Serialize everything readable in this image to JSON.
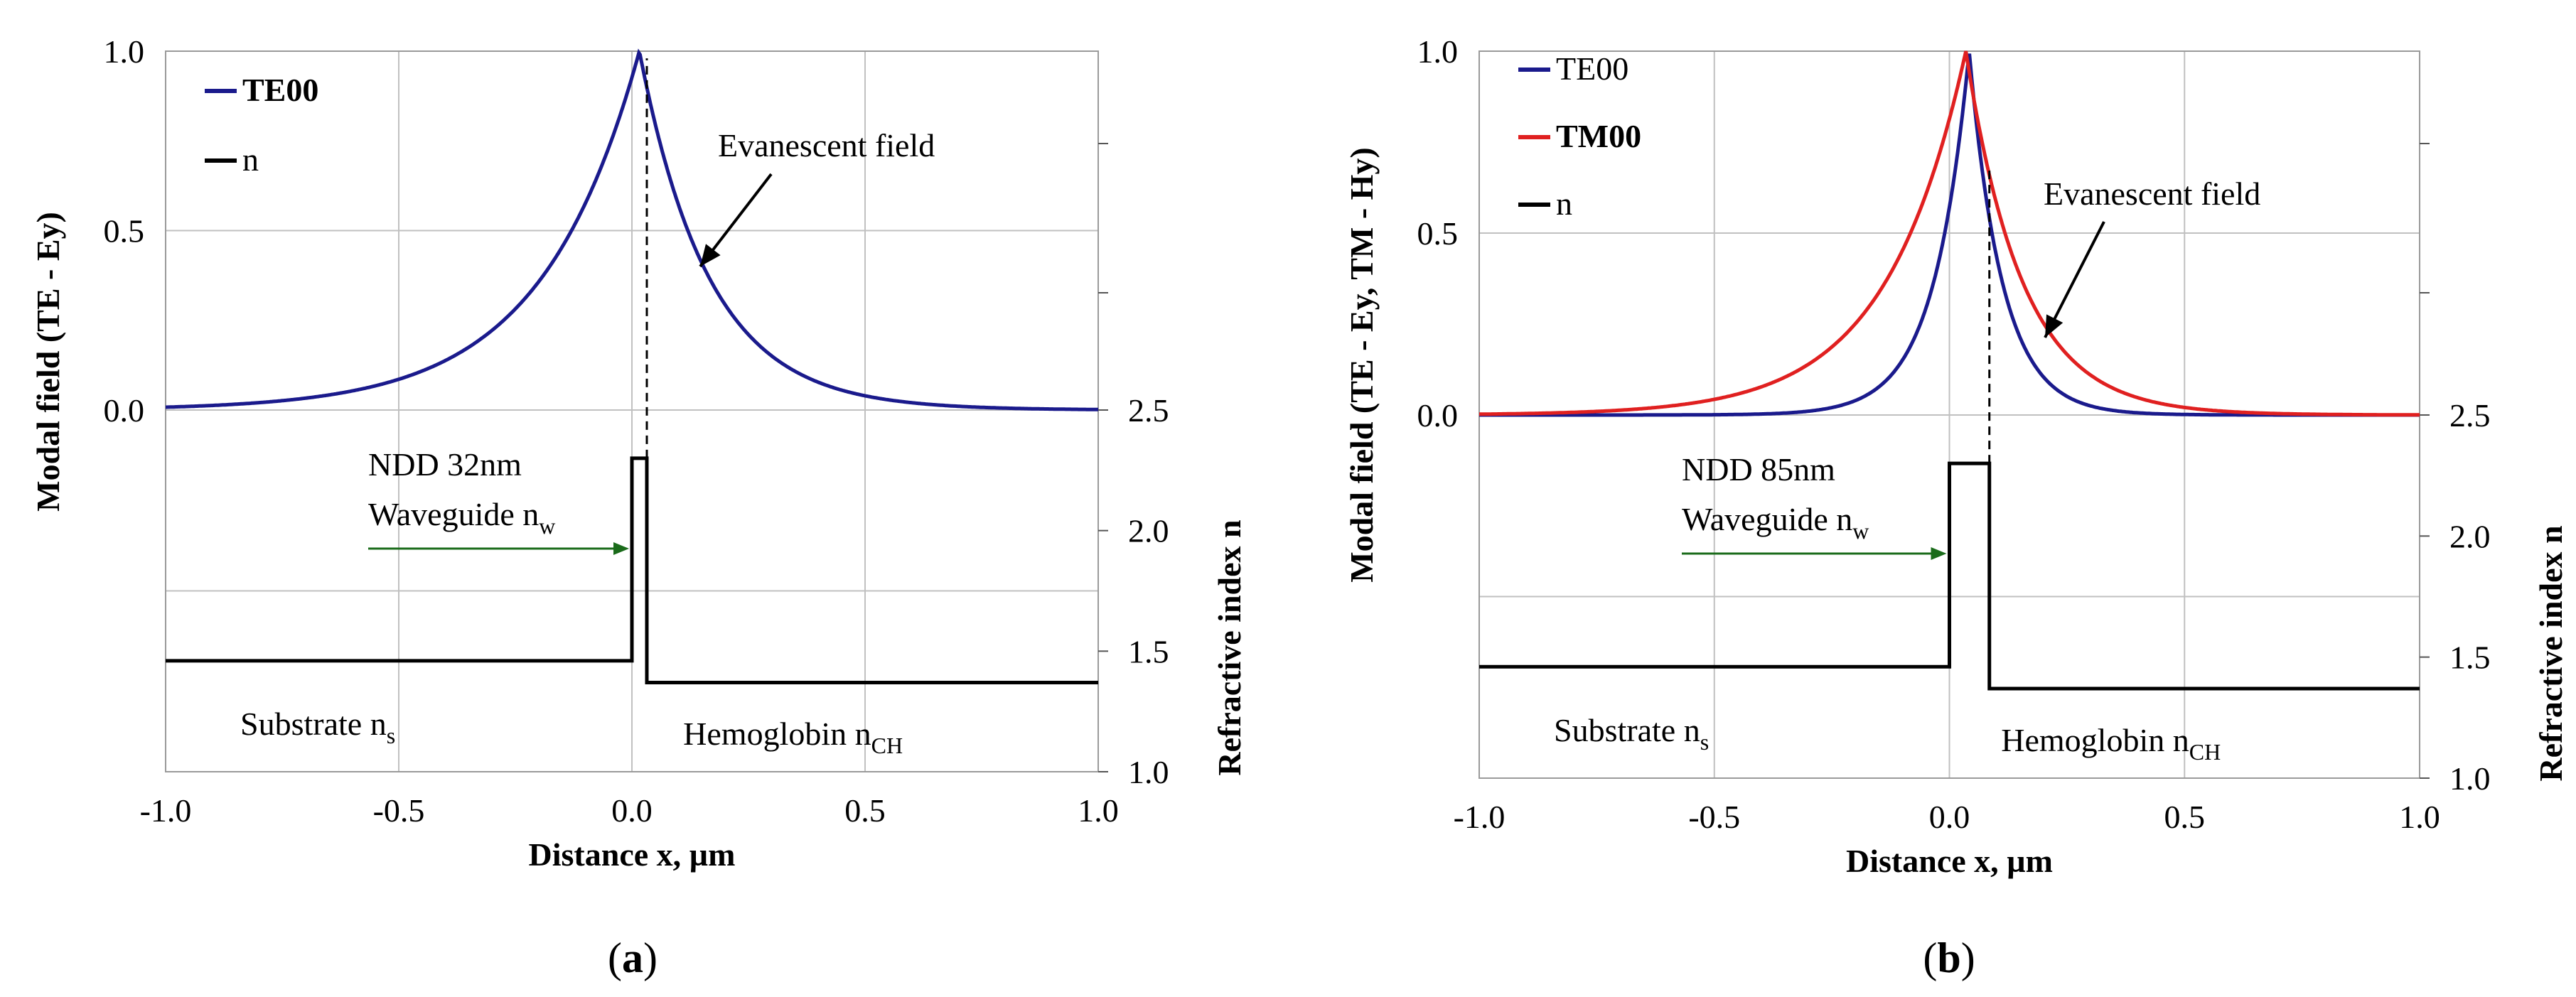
{
  "colors": {
    "te00": "#1a1a8c",
    "tm00": "#e02020",
    "index": "#000000",
    "ndd": "#1a6b1a",
    "hemoglobin": "#5a3a1a",
    "grid": "#c0c0c0"
  },
  "chart_data": [
    {
      "type": "line",
      "panel_label": "a",
      "xlabel": "Distance x, µm",
      "ylabel_left": "Modal field (TE - Ey)",
      "ylabel_right": "Refractive index n",
      "xlim": [
        -1.0,
        1.0
      ],
      "ylim_left": [
        0.0,
        1.0
      ],
      "ylim_right": [
        1.0,
        2.5
      ],
      "x_ticks": [
        "-1.0",
        "-0.5",
        "0.0",
        "0.5",
        "1.0"
      ],
      "y_ticks_left": [
        "0.0",
        "0.5",
        "1.0"
      ],
      "y_ticks_right": [
        "1.0",
        "1.5",
        "2.0",
        "2.5"
      ],
      "grid": true,
      "legend": {
        "position": "top-left",
        "entries": [
          "TE00",
          "n"
        ]
      },
      "annotations": {
        "evanescent": "Evanescent field",
        "ndd": "NDD 32nm",
        "waveguide": "Waveguide n",
        "waveguide_sub": "w",
        "substrate": "Substrate n",
        "substrate_sub": "s",
        "hemoglobin": "Hemoglobin n",
        "hemoglobin_sub": "CH"
      },
      "series": [
        {
          "name": "TE00",
          "kind": "field",
          "peak_x": 0.016,
          "decay_left": 0.21,
          "decay_right": 0.15
        },
        {
          "name": "n",
          "kind": "index",
          "steps": [
            {
              "x": [
                -1.0,
                0.0
              ],
              "n": 1.46
            },
            {
              "x": [
                0.0,
                0.032
              ],
              "n": 2.3
            },
            {
              "x": [
                0.032,
                1.0
              ],
              "n": 1.37
            }
          ]
        }
      ]
    },
    {
      "type": "line",
      "panel_label": "b",
      "xlabel": "Distance x, µm",
      "ylabel_left": "Modal field (TE - Ey, TM - Hy)",
      "ylabel_right": "Refractive index n",
      "xlim": [
        -1.0,
        1.0
      ],
      "ylim_left": [
        0.0,
        1.0
      ],
      "ylim_right": [
        1.0,
        2.5
      ],
      "x_ticks": [
        "-1.0",
        "-0.5",
        "0.0",
        "0.5",
        "1.0"
      ],
      "y_ticks_left": [
        "0.0",
        "0.5",
        "1.0"
      ],
      "y_ticks_right": [
        "1.0",
        "1.5",
        "2.0",
        "2.5"
      ],
      "grid": true,
      "legend": {
        "position": "top-left",
        "entries": [
          "TE00",
          "TM00",
          "n"
        ]
      },
      "annotations": {
        "evanescent": "Evanescent field",
        "ndd": "NDD 85nm",
        "waveguide": "Waveguide n",
        "waveguide_sub": "w",
        "substrate": "Substrate n",
        "substrate_sub": "s",
        "hemoglobin": "Hemoglobin n",
        "hemoglobin_sub": "CH"
      },
      "series": [
        {
          "name": "TE00",
          "kind": "field",
          "peak_x": 0.042,
          "decay_left": 0.075,
          "decay_right": 0.07
        },
        {
          "name": "TM00",
          "kind": "field",
          "peak_x": 0.035,
          "decay_left": 0.17,
          "decay_right": 0.12
        },
        {
          "name": "n",
          "kind": "index",
          "steps": [
            {
              "x": [
                -1.0,
                0.0
              ],
              "n": 1.46
            },
            {
              "x": [
                0.0,
                0.085
              ],
              "n": 2.3
            },
            {
              "x": [
                0.085,
                1.0
              ],
              "n": 1.37
            }
          ]
        }
      ]
    }
  ]
}
